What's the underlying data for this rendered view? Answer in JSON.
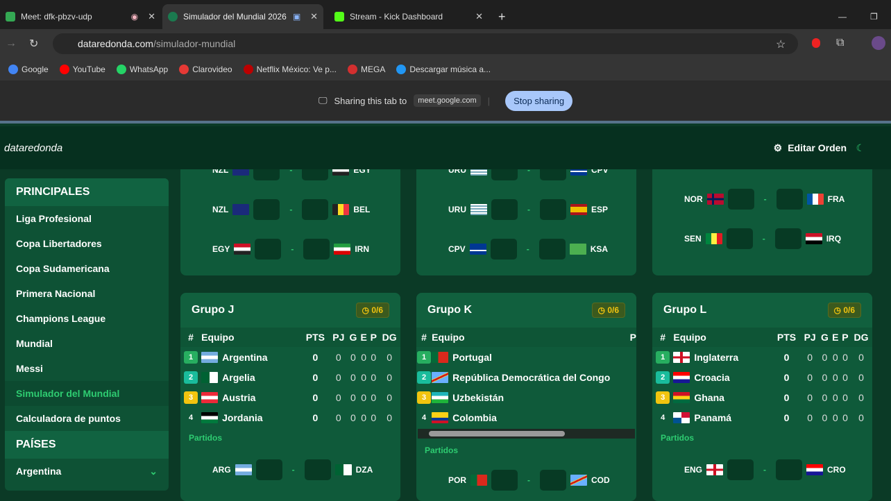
{
  "browser": {
    "tabs": [
      {
        "title": "Meet: dfk-pbzv-udp",
        "active": false
      },
      {
        "title": "Simulador del Mundial 2026",
        "active": true
      },
      {
        "title": "Stream - Kick Dashboard",
        "active": false
      }
    ],
    "url_host": "dataredonda.com",
    "url_path": "/simulador-mundial",
    "bookmarks": [
      "Google",
      "YouTube",
      "WhatsApp",
      "Clarovideo",
      "Netflix México: Ve p...",
      "MEGA",
      "Descargar música a..."
    ],
    "share_text": "Sharing this tab to",
    "share_target": "meet.google.com",
    "stop_label": "Stop sharing"
  },
  "app": {
    "logo": "dataredonda",
    "edit_label": "Editar Orden"
  },
  "sidebar": {
    "section1": "PRINCIPALES",
    "items": [
      "Liga Profesional",
      "Copa Libertadores",
      "Copa Sudamericana",
      "Primera Nacional",
      "Champions League",
      "Mundial",
      "Messi",
      "Simulador del Mundial",
      "Calculadora de puntos"
    ],
    "active": "Simulador del Mundial",
    "section2": "PAÍSES",
    "country": "Argentina"
  },
  "top_matches": [
    [
      [
        "NZL",
        "nz",
        "EGY",
        "eg"
      ],
      [
        "NZL",
        "nz",
        "BEL",
        "be"
      ],
      [
        "EGY",
        "eg",
        "IRN",
        "ir"
      ]
    ],
    [
      [
        "URU",
        "uy",
        "CPV",
        "cv"
      ],
      [
        "URU",
        "uy",
        "ESP",
        "es"
      ],
      [
        "CPV",
        "cv",
        "KSA",
        "sa"
      ]
    ],
    [
      [
        "NOR",
        "no",
        "FRA",
        "fr"
      ],
      [
        "SEN",
        "sn",
        "IRQ",
        "iq"
      ]
    ]
  ],
  "groups": [
    {
      "name": "Grupo J",
      "badge": "0/6",
      "cols": [
        "#",
        "Equipo",
        "PTS",
        "PJ",
        "G",
        "E",
        "P",
        "DG"
      ],
      "teams": [
        [
          "1",
          "Argentina",
          "ar"
        ],
        [
          "2",
          "Argelia",
          "dz"
        ],
        [
          "3",
          "Austria",
          "at"
        ],
        [
          "4",
          "Jordania",
          "jo"
        ]
      ],
      "partidos": "Partidos",
      "match": [
        "ARG",
        "ar",
        "DZA",
        "dz"
      ]
    },
    {
      "name": "Grupo K",
      "badge": "0/6",
      "cols": [
        "#",
        "Equipo",
        "P"
      ],
      "teams": [
        [
          "1",
          "Portugal",
          "pt"
        ],
        [
          "2",
          "República Democrática del Congo",
          "cd"
        ],
        [
          "3",
          "Uzbekistán",
          "uz"
        ],
        [
          "4",
          "Colombia",
          "co"
        ]
      ],
      "partidos": "Partidos",
      "match": [
        "POR",
        "pt",
        "COD",
        "cd"
      ]
    },
    {
      "name": "Grupo L",
      "badge": "0/6",
      "cols": [
        "#",
        "Equipo",
        "PTS",
        "PJ",
        "G",
        "E",
        "P",
        "DG"
      ],
      "teams": [
        [
          "1",
          "Inglaterra",
          "en"
        ],
        [
          "2",
          "Croacia",
          "hr"
        ],
        [
          "3",
          "Ghana",
          "gh"
        ],
        [
          "4",
          "Panamá",
          "pa"
        ]
      ],
      "partidos": "Partidos",
      "match": [
        "ENG",
        "en",
        "CRO",
        "hr"
      ]
    }
  ],
  "stats_value": "0",
  "colors": {
    "accent": "#2ecc71",
    "pos1": "#27ae60",
    "pos2": "#1abc9c",
    "pos3": "#f1c40f",
    "badge": "#f1c40f"
  }
}
